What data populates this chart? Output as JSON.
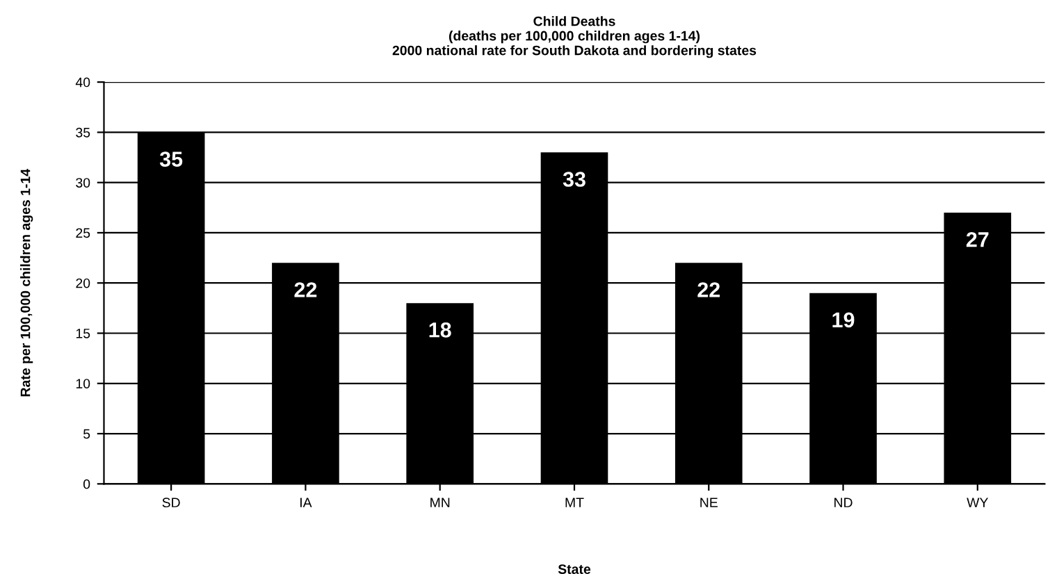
{
  "chart_data": {
    "type": "bar",
    "title": "Child Deaths\n(deaths per 100,000 children ages 1-14)\n2000 national rate for South Dakota and bordering states",
    "xlabel": "State",
    "ylabel": "Rate per 100,000 children ages 1-14",
    "categories": [
      "SD",
      "IA",
      "MN",
      "MT",
      "NE",
      "ND",
      "WY"
    ],
    "values": [
      35,
      22,
      18,
      33,
      22,
      19,
      27
    ],
    "color": "#000000",
    "ylim": [
      0,
      40
    ],
    "yticks": [
      0,
      5,
      10,
      15,
      20,
      25,
      30,
      35,
      40
    ],
    "grid": "y",
    "data_labels": true,
    "legend": false
  }
}
